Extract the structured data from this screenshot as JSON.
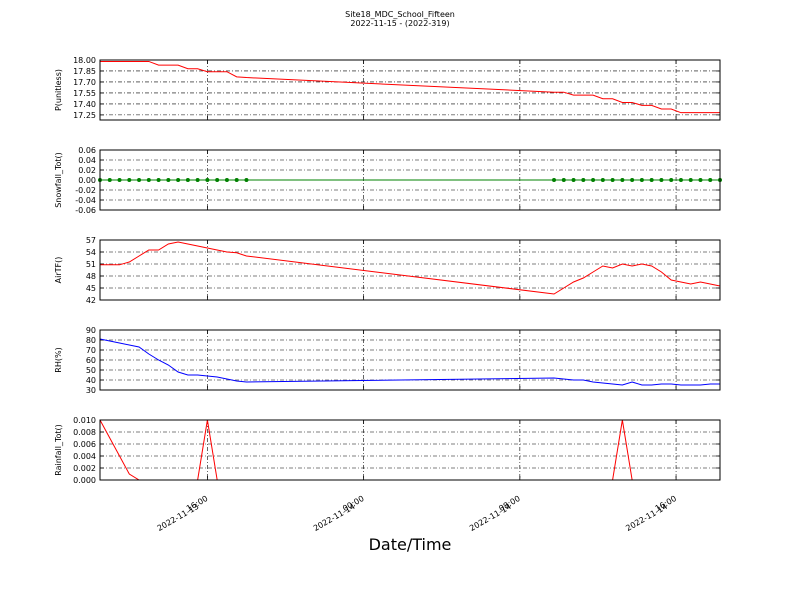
{
  "chart_data": [
    {
      "type": "line",
      "title": "Site18_MDC_School_Fifteen",
      "subtitle": "2022-11-15 - (2022-319)",
      "ylabel": "P(unitless)",
      "x": [
        "2022-11-13 10:30",
        "2022-11-13 11:00",
        "2022-11-13 11:30",
        "2022-11-13 12:00",
        "2022-11-13 12:30",
        "2022-11-13 13:00",
        "2022-11-13 13:30",
        "2022-11-13 14:00",
        "2022-11-13 14:30",
        "2022-11-13 15:00",
        "2022-11-13 15:30",
        "2022-11-13 16:00",
        "2022-11-13 16:30",
        "2022-11-13 17:00",
        "2022-11-13 17:30",
        "2022-11-13 18:00",
        "2022-11-14 09:45",
        "2022-11-14 10:15",
        "2022-11-14 10:45",
        "2022-11-14 11:15",
        "2022-11-14 11:45",
        "2022-11-14 12:15",
        "2022-11-14 12:45",
        "2022-11-14 13:15",
        "2022-11-14 13:45",
        "2022-11-14 14:15",
        "2022-11-14 14:45",
        "2022-11-14 15:15",
        "2022-11-14 15:45",
        "2022-11-14 16:15",
        "2022-11-14 16:45",
        "2022-11-14 17:15",
        "2022-11-14 17:45",
        "2022-11-14 18:15"
      ],
      "xlim": [
        "2022-11-13 10:30",
        "2022-11-14 18:15"
      ],
      "xticks": [
        "2022-11-13 16:00",
        "2022-11-14 00:00",
        "2022-11-14 08:00",
        "2022-11-14 16:00"
      ],
      "ylim": [
        17.18,
        18.0
      ],
      "yticks": [
        {
          "value": 18.0,
          "label": "18.00"
        },
        {
          "value": 17.85,
          "label": "17.85"
        },
        {
          "value": 17.7,
          "label": "17.70"
        },
        {
          "value": 17.55,
          "label": "17.55"
        },
        {
          "value": 17.4,
          "label": "17.40"
        },
        {
          "value": 17.25,
          "label": "17.25"
        }
      ],
      "grid": true,
      "series": [
        {
          "color": "#ff0000",
          "marker": false,
          "values": [
            17.98,
            17.98,
            17.98,
            17.98,
            17.98,
            17.98,
            17.93,
            17.93,
            17.93,
            17.88,
            17.88,
            17.84,
            17.84,
            17.84,
            17.77,
            17.76,
            17.56,
            17.56,
            17.52,
            17.52,
            17.52,
            17.47,
            17.47,
            17.42,
            17.42,
            17.38,
            17.38,
            17.33,
            17.33,
            17.28,
            17.28,
            17.28,
            17.28,
            17.28
          ]
        }
      ]
    },
    {
      "type": "line",
      "ylabel": "Snowfall_Tot()",
      "x": [
        "2022-11-13 10:30",
        "2022-11-13 11:00",
        "2022-11-13 11:30",
        "2022-11-13 12:00",
        "2022-11-13 12:30",
        "2022-11-13 13:00",
        "2022-11-13 13:30",
        "2022-11-13 14:00",
        "2022-11-13 14:30",
        "2022-11-13 15:00",
        "2022-11-13 15:30",
        "2022-11-13 16:00",
        "2022-11-13 16:30",
        "2022-11-13 17:00",
        "2022-11-13 17:30",
        "2022-11-13 18:00",
        "2022-11-14 09:45",
        "2022-11-14 10:15",
        "2022-11-14 10:45",
        "2022-11-14 11:15",
        "2022-11-14 11:45",
        "2022-11-14 12:15",
        "2022-11-14 12:45",
        "2022-11-14 13:15",
        "2022-11-14 13:45",
        "2022-11-14 14:15",
        "2022-11-14 14:45",
        "2022-11-14 15:15",
        "2022-11-14 15:45",
        "2022-11-14 16:15",
        "2022-11-14 16:45",
        "2022-11-14 17:15",
        "2022-11-14 17:45",
        "2022-11-14 18:15"
      ],
      "xlim": [
        "2022-11-13 10:30",
        "2022-11-14 18:15"
      ],
      "xticks": [
        "2022-11-13 16:00",
        "2022-11-14 00:00",
        "2022-11-14 08:00",
        "2022-11-14 16:00"
      ],
      "ylim": [
        -0.06,
        0.06
      ],
      "yticks": [
        0.06,
        0.04,
        0.02,
        {
          "value": 0,
          "label": "0.00"
        },
        -0.02,
        -0.04,
        -0.06
      ],
      "grid": true,
      "series": [
        {
          "color": "#008000",
          "marker": true,
          "values": [
            0,
            0,
            0,
            0,
            0,
            0,
            0,
            0,
            0,
            0,
            0,
            0,
            0,
            0,
            0,
            0,
            0,
            0,
            0,
            0,
            0,
            0,
            0,
            0,
            0,
            0,
            0,
            0,
            0,
            0,
            0,
            0,
            0,
            0
          ]
        }
      ]
    },
    {
      "type": "line",
      "ylabel": "AirTF()",
      "x": [
        "2022-11-13 10:30",
        "2022-11-13 11:00",
        "2022-11-13 11:30",
        "2022-11-13 12:00",
        "2022-11-13 12:30",
        "2022-11-13 13:00",
        "2022-11-13 13:30",
        "2022-11-13 14:00",
        "2022-11-13 14:30",
        "2022-11-13 15:00",
        "2022-11-13 15:30",
        "2022-11-13 16:00",
        "2022-11-13 16:30",
        "2022-11-13 17:00",
        "2022-11-13 17:30",
        "2022-11-13 18:00",
        "2022-11-14 09:45",
        "2022-11-14 10:15",
        "2022-11-14 10:45",
        "2022-11-14 11:15",
        "2022-11-14 11:45",
        "2022-11-14 12:15",
        "2022-11-14 12:45",
        "2022-11-14 13:15",
        "2022-11-14 13:45",
        "2022-11-14 14:15",
        "2022-11-14 14:45",
        "2022-11-14 15:15",
        "2022-11-14 15:45",
        "2022-11-14 16:15",
        "2022-11-14 16:45",
        "2022-11-14 17:15",
        "2022-11-14 17:45",
        "2022-11-14 18:15"
      ],
      "xlim": [
        "2022-11-13 10:30",
        "2022-11-14 18:15"
      ],
      "xticks": [
        "2022-11-13 16:00",
        "2022-11-14 00:00",
        "2022-11-14 08:00",
        "2022-11-14 16:00"
      ],
      "ylim": [
        42,
        57
      ],
      "yticks": [
        57,
        54,
        51,
        48,
        45,
        42
      ],
      "grid": true,
      "series": [
        {
          "color": "#ff0000",
          "marker": false,
          "values": [
            50.8,
            50.8,
            50.8,
            51.5,
            53,
            54.5,
            54.5,
            56,
            56.5,
            56,
            55.5,
            55,
            54.5,
            54,
            53.8,
            53,
            43.5,
            45,
            46.5,
            47.5,
            49,
            50.5,
            50,
            51,
            50.5,
            51,
            50.5,
            49,
            47,
            46.5,
            46,
            46.5,
            46,
            45.5
          ]
        }
      ]
    },
    {
      "type": "line",
      "ylabel": "RH(%)",
      "x": [
        "2022-11-13 10:30",
        "2022-11-13 11:00",
        "2022-11-13 11:30",
        "2022-11-13 12:00",
        "2022-11-13 12:30",
        "2022-11-13 13:00",
        "2022-11-13 13:30",
        "2022-11-13 14:00",
        "2022-11-13 14:30",
        "2022-11-13 15:00",
        "2022-11-13 15:30",
        "2022-11-13 16:00",
        "2022-11-13 16:30",
        "2022-11-13 17:00",
        "2022-11-13 17:30",
        "2022-11-13 18:00",
        "2022-11-14 09:45",
        "2022-11-14 10:15",
        "2022-11-14 10:45",
        "2022-11-14 11:15",
        "2022-11-14 11:45",
        "2022-11-14 12:15",
        "2022-11-14 12:45",
        "2022-11-14 13:15",
        "2022-11-14 13:45",
        "2022-11-14 14:15",
        "2022-11-14 14:45",
        "2022-11-14 15:15",
        "2022-11-14 15:45",
        "2022-11-14 16:15",
        "2022-11-14 16:45",
        "2022-11-14 17:15",
        "2022-11-14 17:45",
        "2022-11-14 18:15"
      ],
      "xlim": [
        "2022-11-13 10:30",
        "2022-11-14 18:15"
      ],
      "xticks": [
        "2022-11-13 16:00",
        "2022-11-14 00:00",
        "2022-11-14 08:00",
        "2022-11-14 16:00"
      ],
      "ylim": [
        30,
        90
      ],
      "yticks": [
        90,
        80,
        70,
        60,
        50,
        40,
        30
      ],
      "grid": true,
      "series": [
        {
          "color": "#0000ff",
          "marker": false,
          "values": [
            81,
            79,
            77,
            75,
            73,
            66,
            60,
            55,
            48,
            45,
            45,
            44,
            43,
            41,
            39,
            38,
            42,
            41,
            40,
            40,
            38,
            37,
            36,
            35,
            38,
            35,
            35,
            36,
            36,
            35,
            35,
            35,
            36,
            36
          ]
        }
      ]
    },
    {
      "type": "line",
      "ylabel": "Rainfall_Tot()",
      "xlabel": "Date/Time",
      "x": [
        "2022-11-13 10:30",
        "2022-11-13 11:00",
        "2022-11-13 11:30",
        "2022-11-13 12:00",
        "2022-11-13 12:30",
        "2022-11-13 13:00",
        "2022-11-13 13:30",
        "2022-11-13 14:00",
        "2022-11-13 14:30",
        "2022-11-13 15:00",
        "2022-11-13 15:30",
        "2022-11-13 16:00",
        "2022-11-13 16:30",
        "2022-11-13 17:00",
        "2022-11-13 17:30",
        "2022-11-13 18:00",
        "2022-11-14 09:45",
        "2022-11-14 10:15",
        "2022-11-14 10:45",
        "2022-11-14 11:15",
        "2022-11-14 11:45",
        "2022-11-14 12:15",
        "2022-11-14 12:45",
        "2022-11-14 13:15",
        "2022-11-14 13:45",
        "2022-11-14 14:15",
        "2022-11-14 14:45",
        "2022-11-14 15:15",
        "2022-11-14 15:45",
        "2022-11-14 16:15",
        "2022-11-14 16:45",
        "2022-11-14 17:15",
        "2022-11-14 17:45",
        "2022-11-14 18:15"
      ],
      "xlim": [
        "2022-11-13 10:30",
        "2022-11-14 18:15"
      ],
      "xticks": [
        {
          "value": "2022-11-13 16:00",
          "label": [
            "2022-11-13",
            "16:00"
          ]
        },
        {
          "value": "2022-11-14 00:00",
          "label": [
            "2022-11-14",
            "00:00"
          ]
        },
        {
          "value": "2022-11-14 08:00",
          "label": [
            "2022-11-14",
            "08:00"
          ]
        },
        {
          "value": "2022-11-14 16:00",
          "label": [
            "2022-11-14",
            "16:00"
          ]
        }
      ],
      "ylim": [
        0,
        0.01
      ],
      "yticks": [
        {
          "value": 0.01,
          "label": "0.010"
        },
        {
          "value": 0.008,
          "label": "0.008"
        },
        {
          "value": 0.006,
          "label": "0.006"
        },
        {
          "value": 0.004,
          "label": "0.004"
        },
        {
          "value": 0.002,
          "label": "0.002"
        },
        {
          "value": 0,
          "label": "0.000"
        }
      ],
      "grid": true,
      "series": [
        {
          "color": "#ff0000",
          "marker": false,
          "values": [
            0.01,
            0.007,
            0.004,
            0.001,
            0,
            0,
            0,
            0,
            0,
            0,
            0,
            0.01,
            0,
            0,
            0,
            0,
            0,
            0,
            0,
            0,
            0,
            0,
            0,
            0.01,
            0,
            0,
            0,
            0,
            0,
            0,
            0,
            0,
            0,
            0
          ]
        }
      ]
    }
  ]
}
